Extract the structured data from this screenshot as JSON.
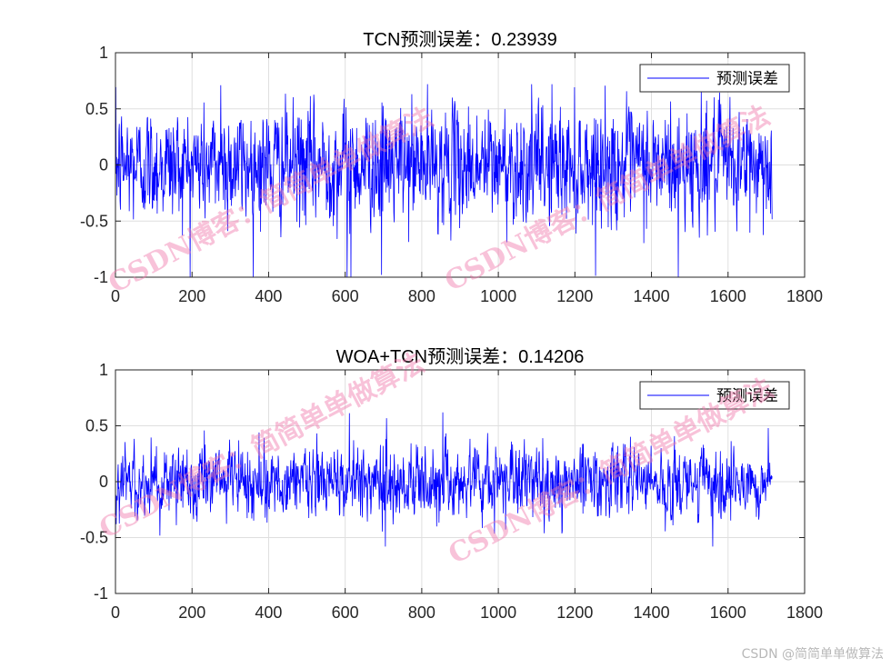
{
  "chart_data": [
    {
      "type": "line",
      "title": "TCN预测误差：0.23939",
      "xlabel": "",
      "ylabel": "",
      "xlim": [
        0,
        1800
      ],
      "ylim": [
        -1,
        1
      ],
      "xticks": [
        0,
        200,
        400,
        600,
        800,
        1000,
        1200,
        1400,
        1600,
        1800
      ],
      "yticks": [
        -1,
        -0.5,
        0,
        0.5,
        1
      ],
      "xtick_labels": [
        "0",
        "200",
        "400",
        "600",
        "800",
        "1000",
        "1200",
        "1400",
        "1600",
        "1800"
      ],
      "ytick_labels": [
        "-1",
        "-0.5",
        "0",
        "0.5",
        "1"
      ],
      "grid": true,
      "legend": [
        "预测误差"
      ],
      "legend_position": "top-right",
      "series_color": "#0000ff",
      "series": [
        {
          "name": "预测误差",
          "n_points": 1715,
          "x_range": [
            1,
            1715
          ],
          "approx_range": [
            -1,
            0.72
          ],
          "peaks": [
            {
              "x": 275,
              "y": 0.71
            },
            {
              "x": 605,
              "y": -1.0
            },
            {
              "x": 615,
              "y": -1.0
            },
            {
              "x": 695,
              "y": -0.98
            },
            {
              "x": 1140,
              "y": 0.72
            },
            {
              "x": 1470,
              "y": -1.0
            },
            {
              "x": 1530,
              "y": 0.65
            }
          ]
        }
      ],
      "watermarks": [
        "CSDN博客：简简单单做算法",
        "CSDN博客：简简单单做算法"
      ]
    },
    {
      "type": "line",
      "title": "WOA+TCN预测误差：0.14206",
      "xlabel": "",
      "ylabel": "",
      "xlim": [
        0,
        1800
      ],
      "ylim": [
        -1,
        1
      ],
      "xticks": [
        0,
        200,
        400,
        600,
        800,
        1000,
        1200,
        1400,
        1600,
        1800
      ],
      "yticks": [
        -1,
        -0.5,
        0,
        0.5,
        1
      ],
      "xtick_labels": [
        "0",
        "200",
        "400",
        "600",
        "800",
        "1000",
        "1200",
        "1400",
        "1600",
        "1800"
      ],
      "ytick_labels": [
        "-1",
        "-0.5",
        "0",
        "0.5",
        "1"
      ],
      "grid": true,
      "legend": [
        "预测误差"
      ],
      "legend_position": "top-right",
      "series_color": "#0000ff",
      "series": [
        {
          "name": "预测误差",
          "n_points": 1715,
          "x_range": [
            1,
            1715
          ],
          "approx_range": [
            -0.58,
            0.62
          ],
          "peaks": [
            {
              "x": 375,
              "y": 0.44
            },
            {
              "x": 705,
              "y": -0.58
            },
            {
              "x": 855,
              "y": 0.62
            },
            {
              "x": 1560,
              "y": -0.58
            },
            {
              "x": 1705,
              "y": 0.48
            }
          ]
        }
      ],
      "watermarks": [
        "CSDN博客：简简单单做算法",
        "CSDN博客：简简单单做算法"
      ]
    }
  ],
  "footer": "CSDN @简简单单做算法"
}
